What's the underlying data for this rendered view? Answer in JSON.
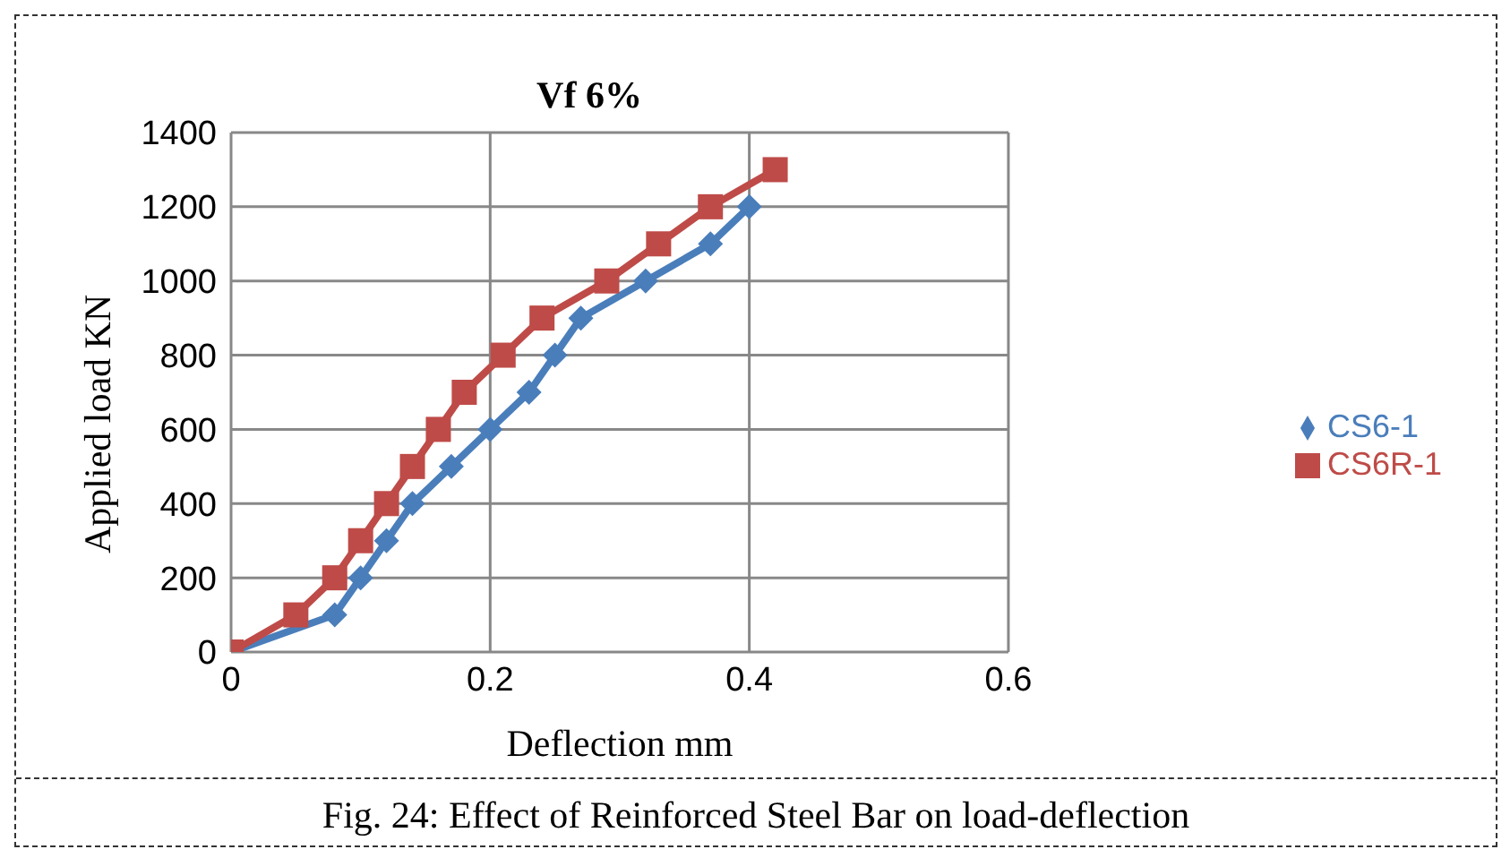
{
  "chart_data": {
    "type": "line",
    "title": "Vf  6%",
    "xlabel": "Deflection  mm",
    "ylabel": "Applied load  KN",
    "annotations": [
      "Fig. 24: Effect of Reinforced Steel Bar on load-deflection"
    ],
    "series": [
      {
        "name": "CS6-1",
        "color": "#4a7ebb",
        "marker": "diamond",
        "x": [
          0,
          0.08,
          0.1,
          0.12,
          0.14,
          0.17,
          0.2,
          0.23,
          0.25,
          0.27,
          0.32,
          0.37,
          0.4
        ],
        "values": [
          0,
          100,
          200,
          300,
          400,
          500,
          600,
          700,
          800,
          900,
          1000,
          1100,
          1200
        ]
      },
      {
        "name": "CS6R-1",
        "color": "#be4b48",
        "marker": "square",
        "x": [
          0,
          0.05,
          0.08,
          0.1,
          0.12,
          0.14,
          0.16,
          0.18,
          0.21,
          0.24,
          0.29,
          0.33,
          0.37,
          0.42
        ],
        "values": [
          0,
          100,
          200,
          300,
          400,
          500,
          600,
          700,
          800,
          900,
          1000,
          1100,
          1200,
          1300
        ]
      }
    ],
    "xlim": [
      0,
      0.6
    ],
    "xticks": [
      0,
      0.2,
      0.4,
      0.6
    ],
    "ylim": [
      0,
      1400
    ],
    "yticks": [
      0,
      200,
      400,
      600,
      800,
      1000,
      1200,
      1400
    ],
    "grid": true,
    "legend": "right",
    "line_style": "solid"
  }
}
